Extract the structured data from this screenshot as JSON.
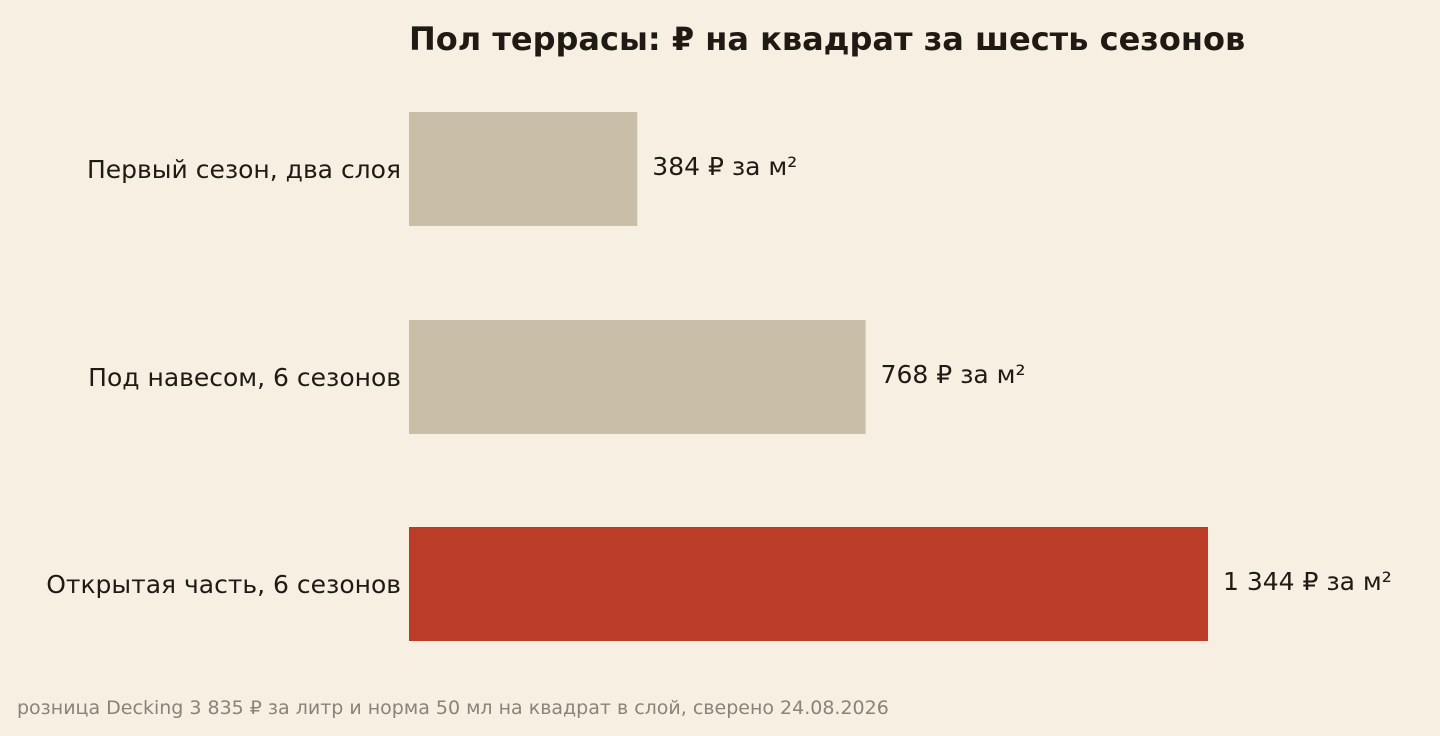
{
  "chart_data": {
    "type": "bar",
    "orientation": "horizontal",
    "title": "Пол террасы: ₽ на квадрат за шесть сезонов",
    "xlabel": "",
    "ylabel": "",
    "categories": [
      "Первый сезон, два слоя",
      "Под навесом, 6 сезонов",
      "Открытая часть, 6 сезонов"
    ],
    "values": [
      384,
      768,
      1344
    ],
    "value_labels": [
      "384 ₽ за м²",
      "768 ₽ за м²",
      "1 344 ₽ за м²"
    ],
    "unit": "₽ за м²",
    "xlim": [
      0,
      1344
    ],
    "bar_colors": [
      "#c9bfa8",
      "#c9bfa8",
      "#bc3d27"
    ],
    "grid": false,
    "legend": "none",
    "footnote": "розница Decking 3 835 ₽ за литр и норма 50 мл на квадрат в слой, сверено 24.08.2026"
  },
  "colors": {
    "background": "#f6efe2",
    "text": "#1f1b14",
    "footnote": "#8a8378",
    "muted_bar": "#c9bfa8",
    "highlight_bar": "#bc3d27"
  }
}
